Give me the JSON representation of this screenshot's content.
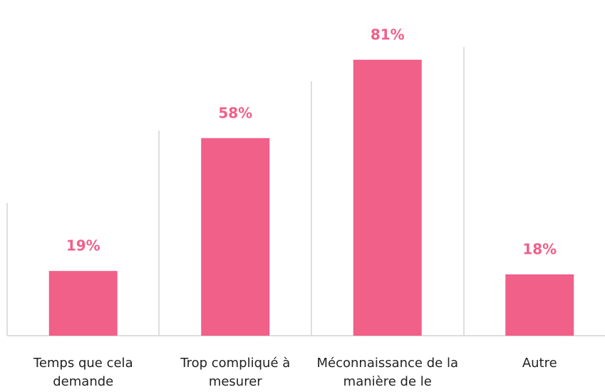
{
  "chart_data": {
    "type": "bar",
    "categories": [
      "Temps que cela demande",
      "Trop compliqué à mesurer",
      "Méconnaissance de la manière de le valoriser",
      "Autre"
    ],
    "values": [
      19,
      58,
      81,
      18
    ],
    "value_labels": [
      "19%",
      "58%",
      "81%",
      "18%"
    ],
    "color": "#f06089"
  }
}
